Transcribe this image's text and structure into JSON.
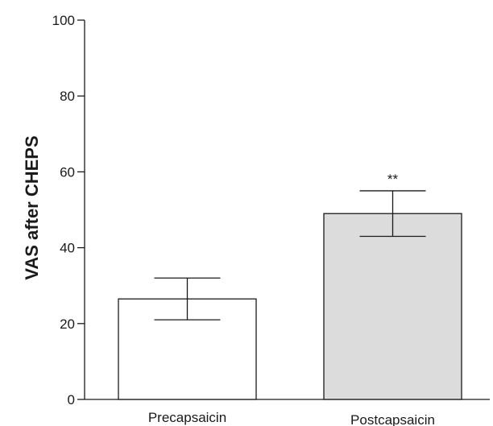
{
  "chart_data": {
    "type": "bar",
    "categories": [
      "Precapsaicin",
      "Postcapsaicin"
    ],
    "values": [
      26.5,
      49
    ],
    "error_upper": [
      32,
      55
    ],
    "error_lower": [
      21,
      43
    ],
    "bar_colors": [
      "#ffffff",
      "#dcdcdc"
    ],
    "annotations": [
      "",
      "**"
    ],
    "ylabel": "VAS after CHEPS",
    "xlabel": "",
    "ylim": [
      0,
      100
    ],
    "yticks": [
      0,
      20,
      40,
      60,
      80,
      100
    ],
    "grid": false,
    "legend": "none"
  }
}
